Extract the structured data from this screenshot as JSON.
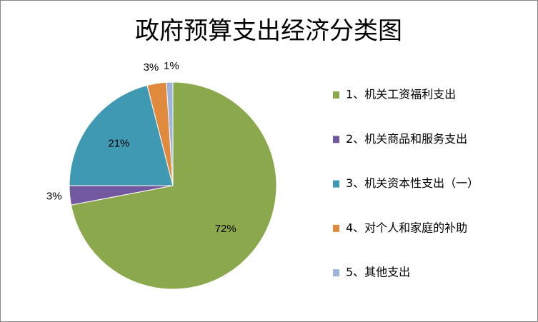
{
  "chart_data": {
    "type": "pie",
    "title": "政府预算支出经济分类图",
    "categories": [
      "1、机关工资福利支出",
      "2、机关商品和服务支出",
      "3、机关资本性支出（一）",
      "4、对个人和家庭的补助",
      "5、其他支出"
    ],
    "values": [
      72,
      3,
      21,
      3,
      1
    ],
    "value_labels": [
      "72%",
      "3%",
      "21%",
      "3%",
      "1%"
    ],
    "colors": [
      "#8BA84C",
      "#71589F",
      "#3F99B2",
      "#E08A3E",
      "#9EB4DA"
    ],
    "legend": "right"
  }
}
